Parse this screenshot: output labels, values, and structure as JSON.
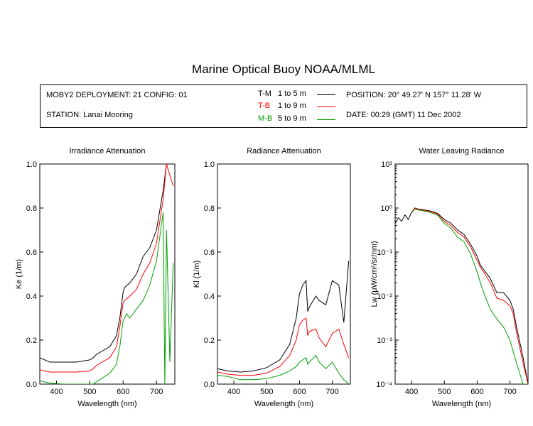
{
  "title": "Marine Optical Buoy NOAA/MLML",
  "info": {
    "deployment": "MOBY2 DEPLOYMENT: 21 CONFIG: 01",
    "station": "STATION: Lanai Mooring",
    "position": "POSITION: 20° 49.27' N   157° 11.28' W",
    "date": "DATE: 00:29 (GMT) 11 Dec 2002"
  },
  "legend": [
    {
      "code": "T-M",
      "range": "1 to 5  m",
      "color": "#000000"
    },
    {
      "code": "T-B",
      "range": "1 to 9  m",
      "color": "#ff0000"
    },
    {
      "code": "M-B",
      "range": "5 to 9  m",
      "color": "#00a000"
    }
  ],
  "chart_data": [
    {
      "type": "line",
      "title": "Irradiance Attenuation",
      "xlabel": "Wavelength (nm)",
      "ylabel": "Ke  (1/m)",
      "xlim": [
        350,
        755
      ],
      "ylim": [
        0,
        1.0
      ],
      "xticks": [
        "400",
        "500",
        "600",
        "700"
      ],
      "yticks": [
        "0.0",
        "0.2",
        "0.4",
        "0.6",
        "0.8",
        "1.0"
      ],
      "series": [
        {
          "name": "T-M",
          "color": "#000000",
          "x": [
            350,
            380,
            420,
            460,
            500,
            510,
            520,
            560,
            580,
            590,
            600,
            605,
            620,
            640,
            660,
            680,
            700,
            720,
            730
          ],
          "y": [
            0.12,
            0.1,
            0.1,
            0.1,
            0.11,
            0.12,
            0.135,
            0.17,
            0.22,
            0.3,
            0.42,
            0.44,
            0.46,
            0.5,
            0.58,
            0.62,
            0.7,
            0.88,
            1.0
          ]
        },
        {
          "name": "T-B",
          "color": "#ff0000",
          "x": [
            350,
            380,
            420,
            460,
            500,
            510,
            520,
            560,
            580,
            590,
            600,
            605,
            620,
            640,
            660,
            680,
            700,
            720,
            730,
            740,
            750
          ],
          "y": [
            0.065,
            0.055,
            0.055,
            0.055,
            0.06,
            0.07,
            0.085,
            0.12,
            0.17,
            0.26,
            0.37,
            0.38,
            0.4,
            0.43,
            0.5,
            0.55,
            0.64,
            0.84,
            1.0,
            0.95,
            0.9
          ]
        },
        {
          "name": "M-B",
          "color": "#00a000",
          "x": [
            350,
            380,
            420,
            460,
            500,
            510,
            520,
            560,
            580,
            590,
            600,
            605,
            610,
            620,
            640,
            660,
            680,
            700,
            720,
            725,
            730,
            740,
            750
          ],
          "y": [
            0.015,
            0.005,
            0.0,
            0.0,
            0.0,
            0.0,
            0.01,
            0.05,
            0.09,
            0.17,
            0.29,
            0.3,
            0.32,
            0.3,
            0.34,
            0.38,
            0.45,
            0.56,
            0.78,
            0.0,
            0.7,
            0.1,
            0.55
          ]
        }
      ]
    },
    {
      "type": "line",
      "title": "Radiance Attenuation",
      "xlabel": "Wavelength (nm)",
      "ylabel": "Kl  (1/m)",
      "xlim": [
        350,
        755
      ],
      "ylim": [
        0,
        1.0
      ],
      "xticks": [
        "400",
        "500",
        "600",
        "700"
      ],
      "yticks": [
        "0.0",
        "0.2",
        "0.4",
        "0.6",
        "0.8",
        "1.0"
      ],
      "series": [
        {
          "name": "T-M",
          "color": "#000000",
          "x": [
            350,
            380,
            420,
            460,
            500,
            540,
            570,
            590,
            600,
            610,
            620,
            625,
            630,
            650,
            660,
            680,
            700,
            720,
            735,
            750
          ],
          "y": [
            0.07,
            0.06,
            0.055,
            0.06,
            0.075,
            0.11,
            0.18,
            0.3,
            0.41,
            0.45,
            0.47,
            0.33,
            0.35,
            0.4,
            0.38,
            0.36,
            0.47,
            0.45,
            0.28,
            0.56
          ]
        },
        {
          "name": "T-B",
          "color": "#ff0000",
          "x": [
            350,
            380,
            420,
            460,
            500,
            540,
            570,
            590,
            600,
            610,
            620,
            625,
            630,
            650,
            660,
            680,
            700,
            720,
            735,
            750
          ],
          "y": [
            0.055,
            0.045,
            0.04,
            0.04,
            0.05,
            0.08,
            0.13,
            0.2,
            0.27,
            0.29,
            0.3,
            0.22,
            0.24,
            0.25,
            0.21,
            0.17,
            0.23,
            0.25,
            0.18,
            0.12
          ]
        },
        {
          "name": "M-B",
          "color": "#00a000",
          "x": [
            350,
            380,
            420,
            460,
            500,
            540,
            570,
            590,
            600,
            610,
            620,
            625,
            630,
            650,
            660,
            680,
            700,
            720,
            735,
            750
          ],
          "y": [
            0.04,
            0.035,
            0.02,
            0.02,
            0.025,
            0.04,
            0.06,
            0.08,
            0.1,
            0.11,
            0.12,
            0.09,
            0.1,
            0.13,
            0.1,
            0.07,
            0.1,
            0.05,
            0.02,
            0.0
          ]
        }
      ]
    },
    {
      "type": "line",
      "title": "Water Leaving Radiance",
      "xlabel": "Wavelength (nm)",
      "ylabel": "Lw  (μW/cm²/sr/nm)",
      "yscale": "log",
      "xlim": [
        350,
        755
      ],
      "ylim": [
        0.0001,
        10
      ],
      "xticks": [
        "400",
        "500",
        "600",
        "700"
      ],
      "yticks": [
        "10⁻⁴",
        "10⁻³",
        "10⁻²",
        "10⁻¹",
        "10⁰",
        "10¹"
      ],
      "series": [
        {
          "name": "T-M",
          "color": "#000000",
          "x": [
            350,
            360,
            370,
            380,
            390,
            400,
            410,
            420,
            440,
            460,
            480,
            500,
            520,
            540,
            560,
            580,
            600,
            610,
            620,
            640,
            660,
            680,
            700,
            710,
            720,
            740,
            755
          ],
          "y": [
            0.45,
            0.6,
            0.5,
            0.7,
            0.55,
            0.8,
            1.0,
            0.95,
            0.9,
            0.85,
            0.75,
            0.55,
            0.45,
            0.32,
            0.25,
            0.15,
            0.08,
            0.05,
            0.04,
            0.025,
            0.012,
            0.012,
            0.008,
            0.005,
            0.002,
            0.0004,
            0.0001
          ]
        },
        {
          "name": "T-B",
          "color": "#ff0000",
          "x": [
            400,
            410,
            420,
            440,
            460,
            480,
            500,
            520,
            540,
            560,
            580,
            600,
            610,
            620,
            640,
            660,
            680,
            700,
            710,
            720,
            740,
            755
          ],
          "y": [
            0.8,
            0.98,
            0.93,
            0.88,
            0.82,
            0.72,
            0.5,
            0.4,
            0.28,
            0.22,
            0.13,
            0.065,
            0.045,
            0.035,
            0.02,
            0.009,
            0.008,
            0.006,
            0.004,
            0.0015,
            0.0003,
            0.0001
          ]
        },
        {
          "name": "M-B",
          "color": "#00a000",
          "x": [
            400,
            410,
            420,
            440,
            460,
            480,
            500,
            520,
            540,
            560,
            580,
            600,
            610,
            620,
            640,
            660,
            680,
            700,
            720,
            740,
            755
          ],
          "y": [
            0.78,
            0.95,
            0.9,
            0.85,
            0.78,
            0.68,
            0.45,
            0.35,
            0.22,
            0.17,
            0.09,
            0.035,
            0.02,
            0.012,
            0.005,
            0.003,
            0.002,
            0.001,
            0.0003,
            0.0001,
            0.0001
          ]
        }
      ]
    }
  ]
}
